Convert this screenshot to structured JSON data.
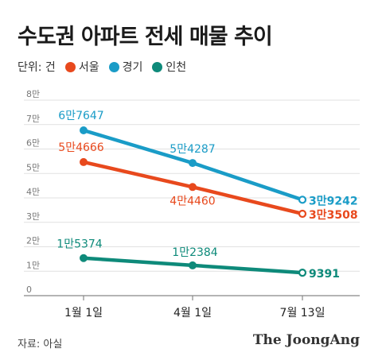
{
  "title": "수도권 아파트 전세 매물 추이",
  "legend": {
    "unit": "단위: 건",
    "items": [
      {
        "label": "서울",
        "color": "#e8491d"
      },
      {
        "label": "경기",
        "color": "#1a9cc7"
      },
      {
        "label": "인천",
        "color": "#0e8a7a"
      }
    ]
  },
  "source": "자료: 아실",
  "brand": "The JoongAng",
  "chart_data": {
    "type": "line",
    "categories": [
      "1월 1일",
      "4월 1일",
      "7월 13일"
    ],
    "y_ticks": [
      "0",
      "1만",
      "2만",
      "3만",
      "4만",
      "5만",
      "6만",
      "7만",
      "8만"
    ],
    "ylim": [
      0,
      80000
    ],
    "grid": true,
    "legend_position": "top-left",
    "series": [
      {
        "name": "경기",
        "color": "#1a9cc7",
        "values": [
          67647,
          54287,
          39242
        ],
        "labels": [
          "6만7647",
          "5만4287",
          "3만9242"
        ]
      },
      {
        "name": "서울",
        "color": "#e8491d",
        "values": [
          54666,
          44460,
          33508
        ],
        "labels": [
          "5만4666",
          "4만4460",
          "3만3508"
        ]
      },
      {
        "name": "인천",
        "color": "#0e8a7a",
        "values": [
          15374,
          12384,
          9391
        ],
        "labels": [
          "1만5374",
          "1만2384",
          "9391"
        ]
      }
    ]
  }
}
